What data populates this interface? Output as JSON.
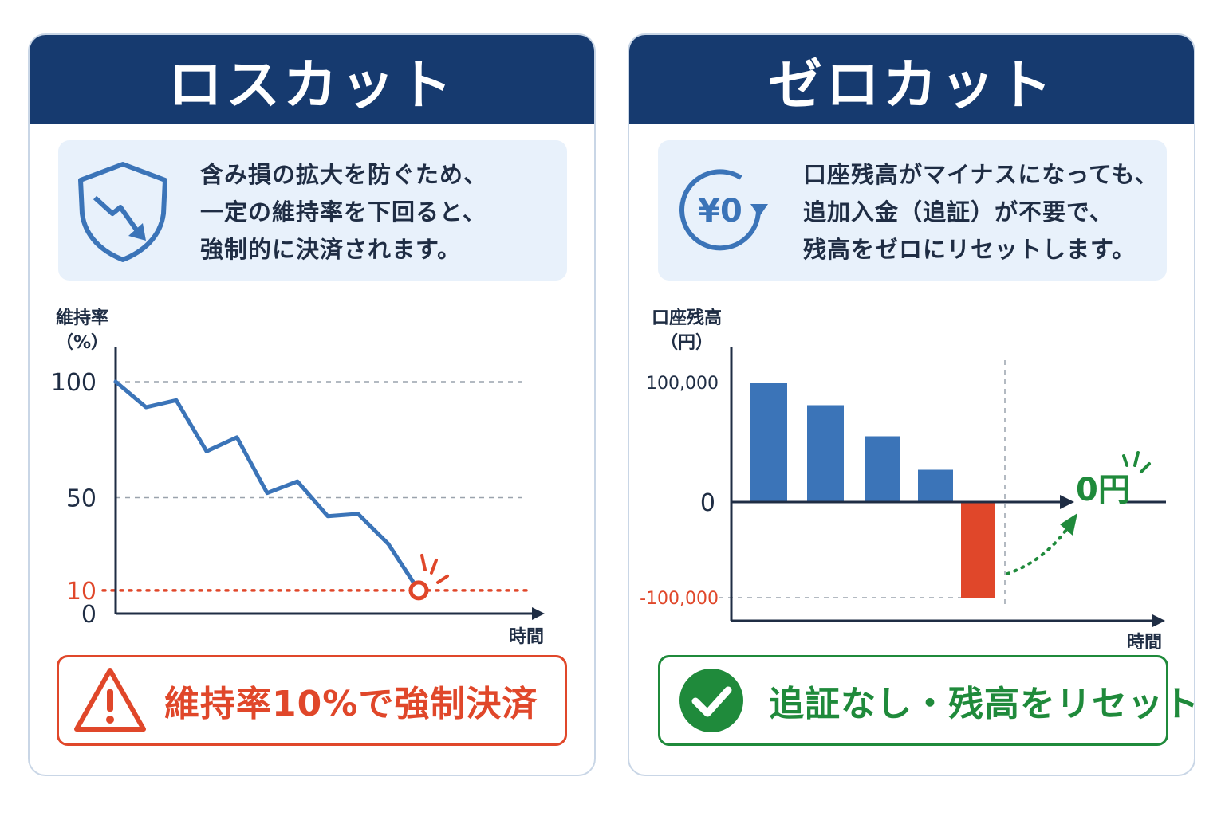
{
  "colors": {
    "navy": "#163a6f",
    "blue": "#3b74b8",
    "red": "#e0472a",
    "green": "#1f8a3b",
    "info_bg": "#e8f1fb"
  },
  "left_card": {
    "title": "ロスカット",
    "icon": "shield-down-trend-icon",
    "description": [
      "含み損の拡大を防ぐため、",
      "一定の維持率を下回ると、",
      "強制的に決済されます。"
    ],
    "bottom_icon": "warning-icon",
    "bottom_text": "維持率10%で強制決済"
  },
  "right_card": {
    "title": "ゼロカット",
    "icon": "yen-zero-cycle-icon",
    "icon_text": "¥0",
    "description": [
      "口座残高がマイナスになっても、",
      "追加入金（追証）が不要で、",
      "残高をゼロにリセットします。"
    ],
    "bottom_icon": "check-circle-icon",
    "bottom_text": "追証なし・残高をリセット"
  },
  "chart_data": [
    {
      "type": "line",
      "ylabel": "維持率\n（%）",
      "xlabel": "時間",
      "ylim": [
        0,
        100
      ],
      "yticks": [
        0,
        10,
        50,
        100
      ],
      "threshold": 10,
      "x": [
        0,
        1,
        2,
        3,
        4,
        5,
        6,
        7,
        8,
        9,
        10
      ],
      "values": [
        100,
        89,
        92,
        70,
        76,
        52,
        57,
        42,
        43,
        30,
        10
      ]
    },
    {
      "type": "bar",
      "ylabel": "口座残高\n（円）",
      "xlabel": "時間",
      "ylim": [
        -100000,
        100000
      ],
      "yticks": [
        "100,000",
        "0",
        "-100,000"
      ],
      "values": [
        100000,
        81000,
        55000,
        27000,
        -100000
      ],
      "reset_label": "0円"
    }
  ]
}
